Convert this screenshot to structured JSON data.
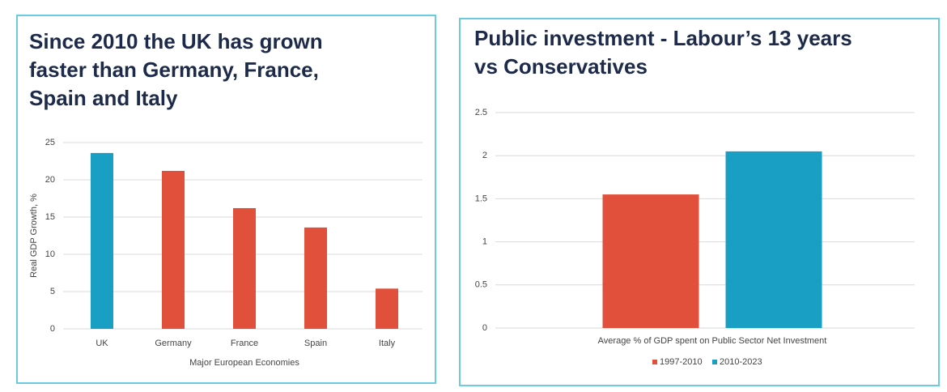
{
  "chart_data": [
    {
      "type": "bar",
      "title": "Since 2010 the UK has grown faster than Germany, France, Spain and Italy",
      "categories": [
        "UK",
        "Germany",
        "France",
        "Spain",
        "Italy"
      ],
      "values": [
        23.6,
        21.2,
        16.2,
        13.6,
        5.4
      ],
      "colors": [
        "#1a9fc4",
        "#e0503a",
        "#e0503a",
        "#e0503a",
        "#e0503a"
      ],
      "x_label": "Major European Economies",
      "y_label": "Real GDP Growth, %",
      "ylim": [
        0,
        25
      ],
      "yticks": [
        0,
        5,
        10,
        15,
        20,
        25
      ],
      "grid": true
    },
    {
      "type": "bar",
      "title": "Public investment - Labour’s 13 years vs Conservatives",
      "categories": [
        "Average % of GDP spent on Public Sector Net Investment"
      ],
      "series": [
        {
          "name": "1997-2010",
          "color": "#e0503a",
          "values": [
            1.55
          ]
        },
        {
          "name": "2010-2023",
          "color": "#1a9fc4",
          "values": [
            2.05
          ]
        }
      ],
      "ylim": [
        0,
        2.5
      ],
      "yticks": [
        0,
        0.5,
        1,
        1.5,
        2,
        2.5
      ],
      "grid": true,
      "legend": "bottom"
    }
  ]
}
